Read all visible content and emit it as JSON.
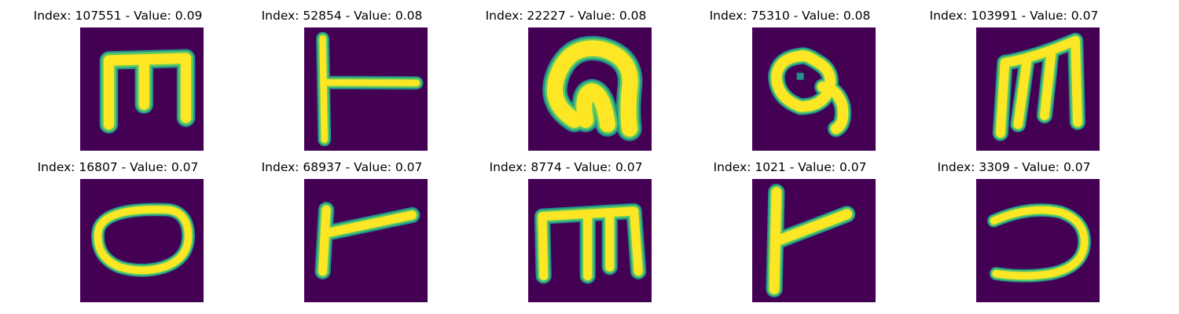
{
  "colors": {
    "background": "#440154",
    "stroke_outer": "#21918c",
    "stroke_mid": "#5ec962",
    "stroke_inner": "#fde725"
  },
  "panels": [
    {
      "title": "Index: 107551 - Value: 0.09",
      "glyph": "m-like-glyph"
    },
    {
      "title": "Index: 52854 - Value: 0.08",
      "glyph": "t-like-glyph"
    },
    {
      "title": "Index: 22227 - Value: 0.08",
      "glyph": "arch-glyph"
    },
    {
      "title": "Index: 75310 - Value: 0.08",
      "glyph": "loop-glyph"
    },
    {
      "title": "Index: 103991 - Value: 0.07",
      "glyph": "m-like-glyph"
    },
    {
      "title": "Index: 16807 - Value: 0.07",
      "glyph": "oval-glyph"
    },
    {
      "title": "Index: 68937 - Value: 0.07",
      "glyph": "t-like-glyph"
    },
    {
      "title": "Index: 8774 - Value: 0.07",
      "glyph": "m-like-glyph"
    },
    {
      "title": "Index: 1021 - Value: 0.07",
      "glyph": "t-like-glyph"
    },
    {
      "title": "Index: 3309 - Value: 0.07",
      "glyph": "hook-glyph"
    }
  ]
}
